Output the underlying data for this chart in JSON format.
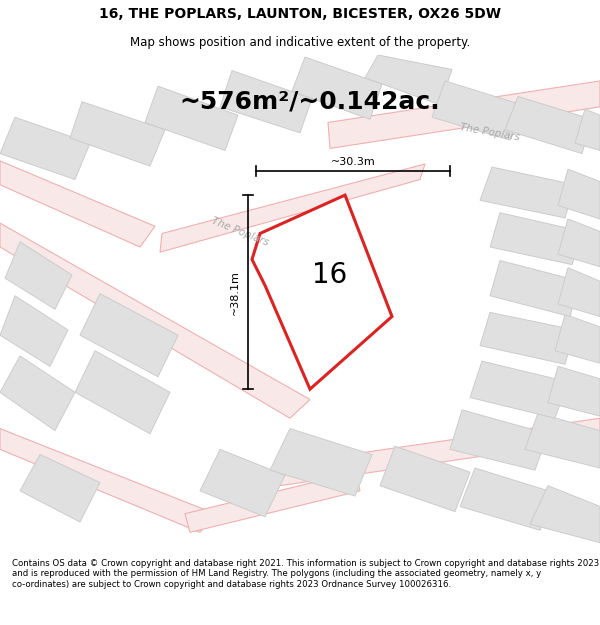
{
  "title": "16, THE POPLARS, LAUNTON, BICESTER, OX26 5DW",
  "subtitle": "Map shows position and indicative extent of the property.",
  "area_text": "~576m²/~0.142ac.",
  "label_16": "16",
  "dim_vertical": "~38.1m",
  "dim_horizontal": "~30.3m",
  "street_name_1": "The Poplars",
  "street_name_2": "The Poplars",
  "footer": "Contains OS data © Crown copyright and database right 2021. This information is subject to Crown copyright and database rights 2023 and is reproduced with the permission of HM Land Registry. The polygons (including the associated geometry, namely x, y co-ordinates) are subject to Crown copyright and database rights 2023 Ordnance Survey 100026316.",
  "map_bg": "#f5f5f5",
  "plot_fill": "#ffffff",
  "plot_edge": "#dd2222",
  "road_outline_color": "#f0b0b0",
  "road_fill_color": "#f8e8e8",
  "building_fill": "#e0e0e0",
  "building_edge": "#cccccc",
  "street_label_color": "#aaaaaa",
  "title_size": 10,
  "subtitle_size": 8.5,
  "area_size": 18,
  "label_size": 20,
  "dim_size": 8,
  "footer_size": 6.2
}
